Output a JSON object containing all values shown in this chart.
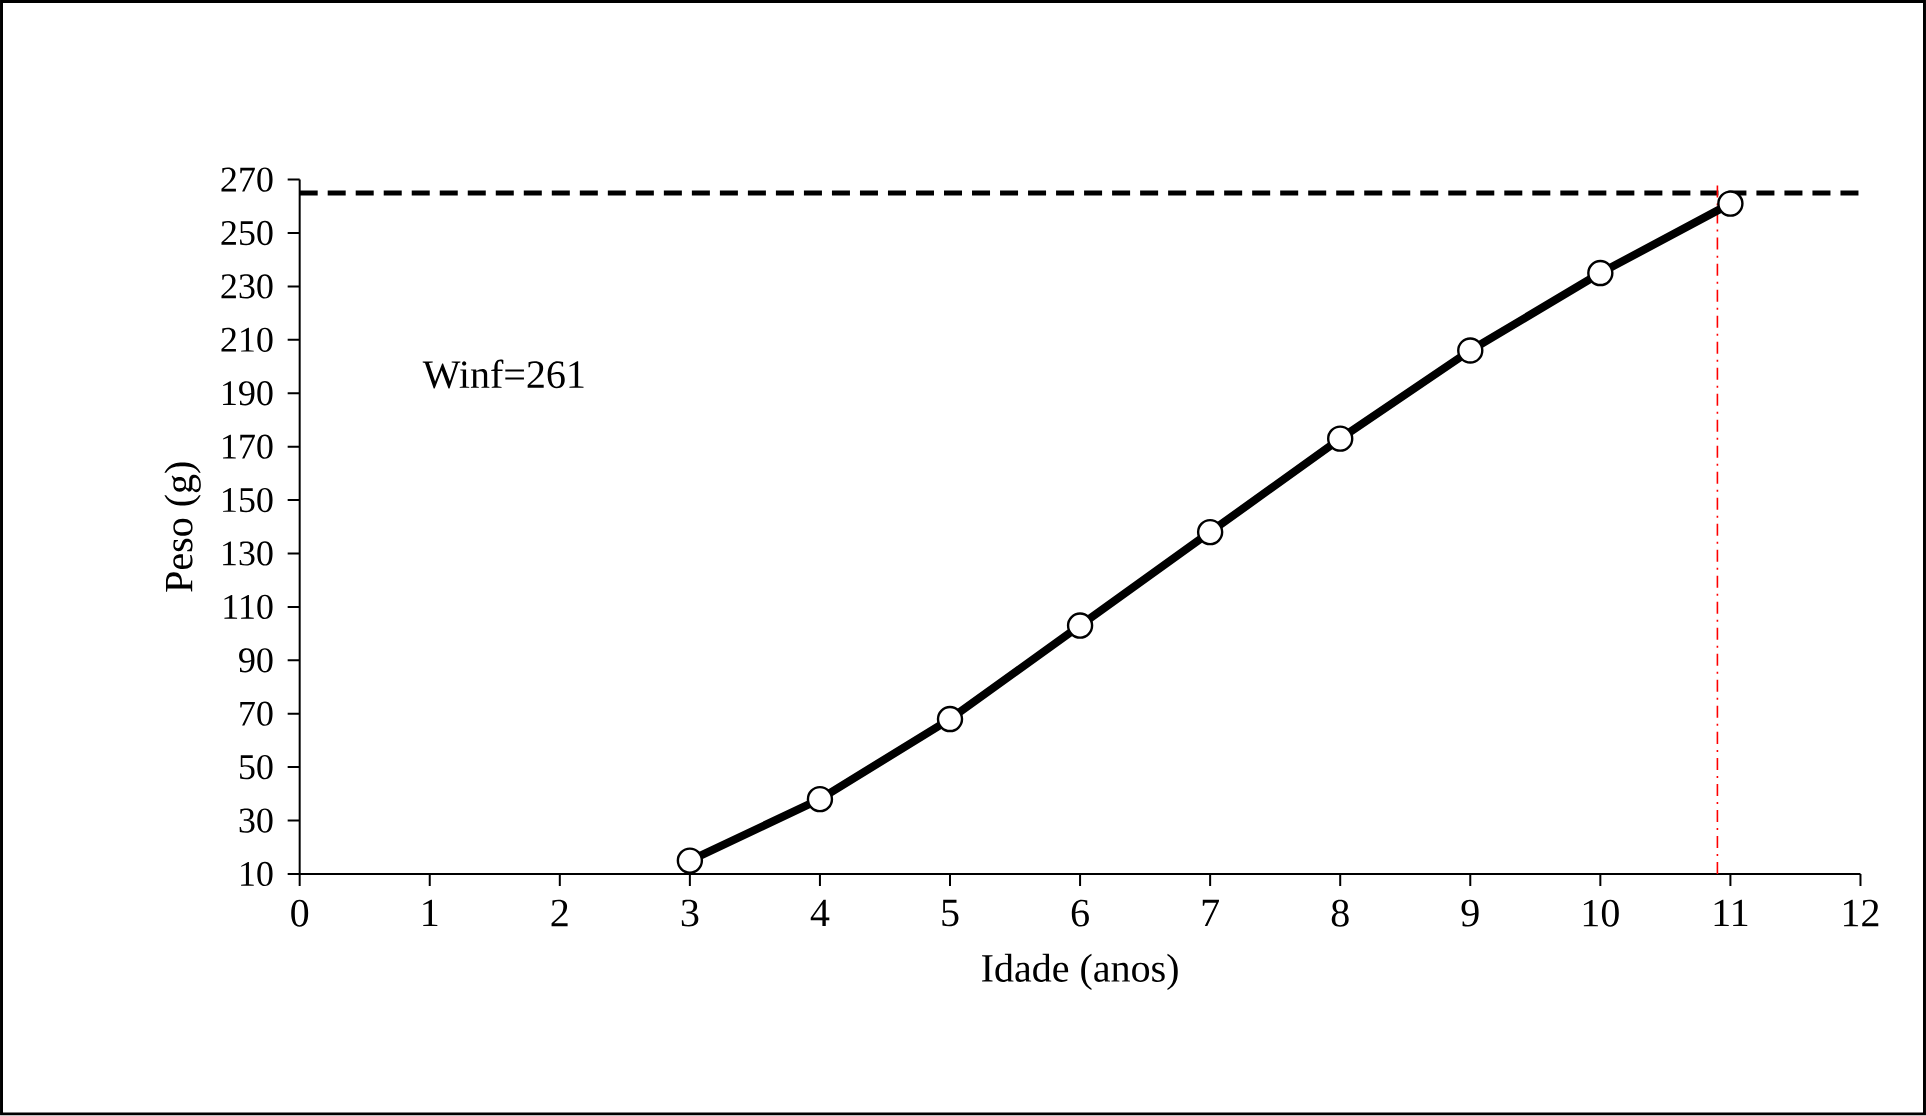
{
  "chart_data": {
    "type": "line",
    "xlabel": "Idade (anos)",
    "ylabel": "Peso (g)",
    "annotations": [
      "Winf=261"
    ],
    "x": [
      3,
      4,
      5,
      6,
      7,
      8,
      9,
      10,
      11
    ],
    "series": [
      {
        "color": "#000000",
        "values": [
          15,
          38,
          68,
          103,
          138,
          173,
          206,
          235,
          261
        ]
      }
    ],
    "xlim": [
      0,
      12
    ],
    "xticks": [
      0,
      1,
      2,
      3,
      4,
      5,
      6,
      7,
      8,
      9,
      10,
      11,
      12
    ],
    "ylim": [
      10,
      270
    ],
    "yticks": [
      10,
      30,
      50,
      70,
      90,
      110,
      130,
      150,
      170,
      190,
      210,
      230,
      250,
      270
    ],
    "ref_lines": [
      {
        "axis": "y",
        "value": 265,
        "color": "#000000",
        "line_style": "dashed"
      },
      {
        "axis": "x",
        "value": 10.9,
        "color": "#ff0000",
        "line_style": "dashdot"
      }
    ],
    "marker": "circle",
    "line_style": "solid",
    "grid": false
  }
}
